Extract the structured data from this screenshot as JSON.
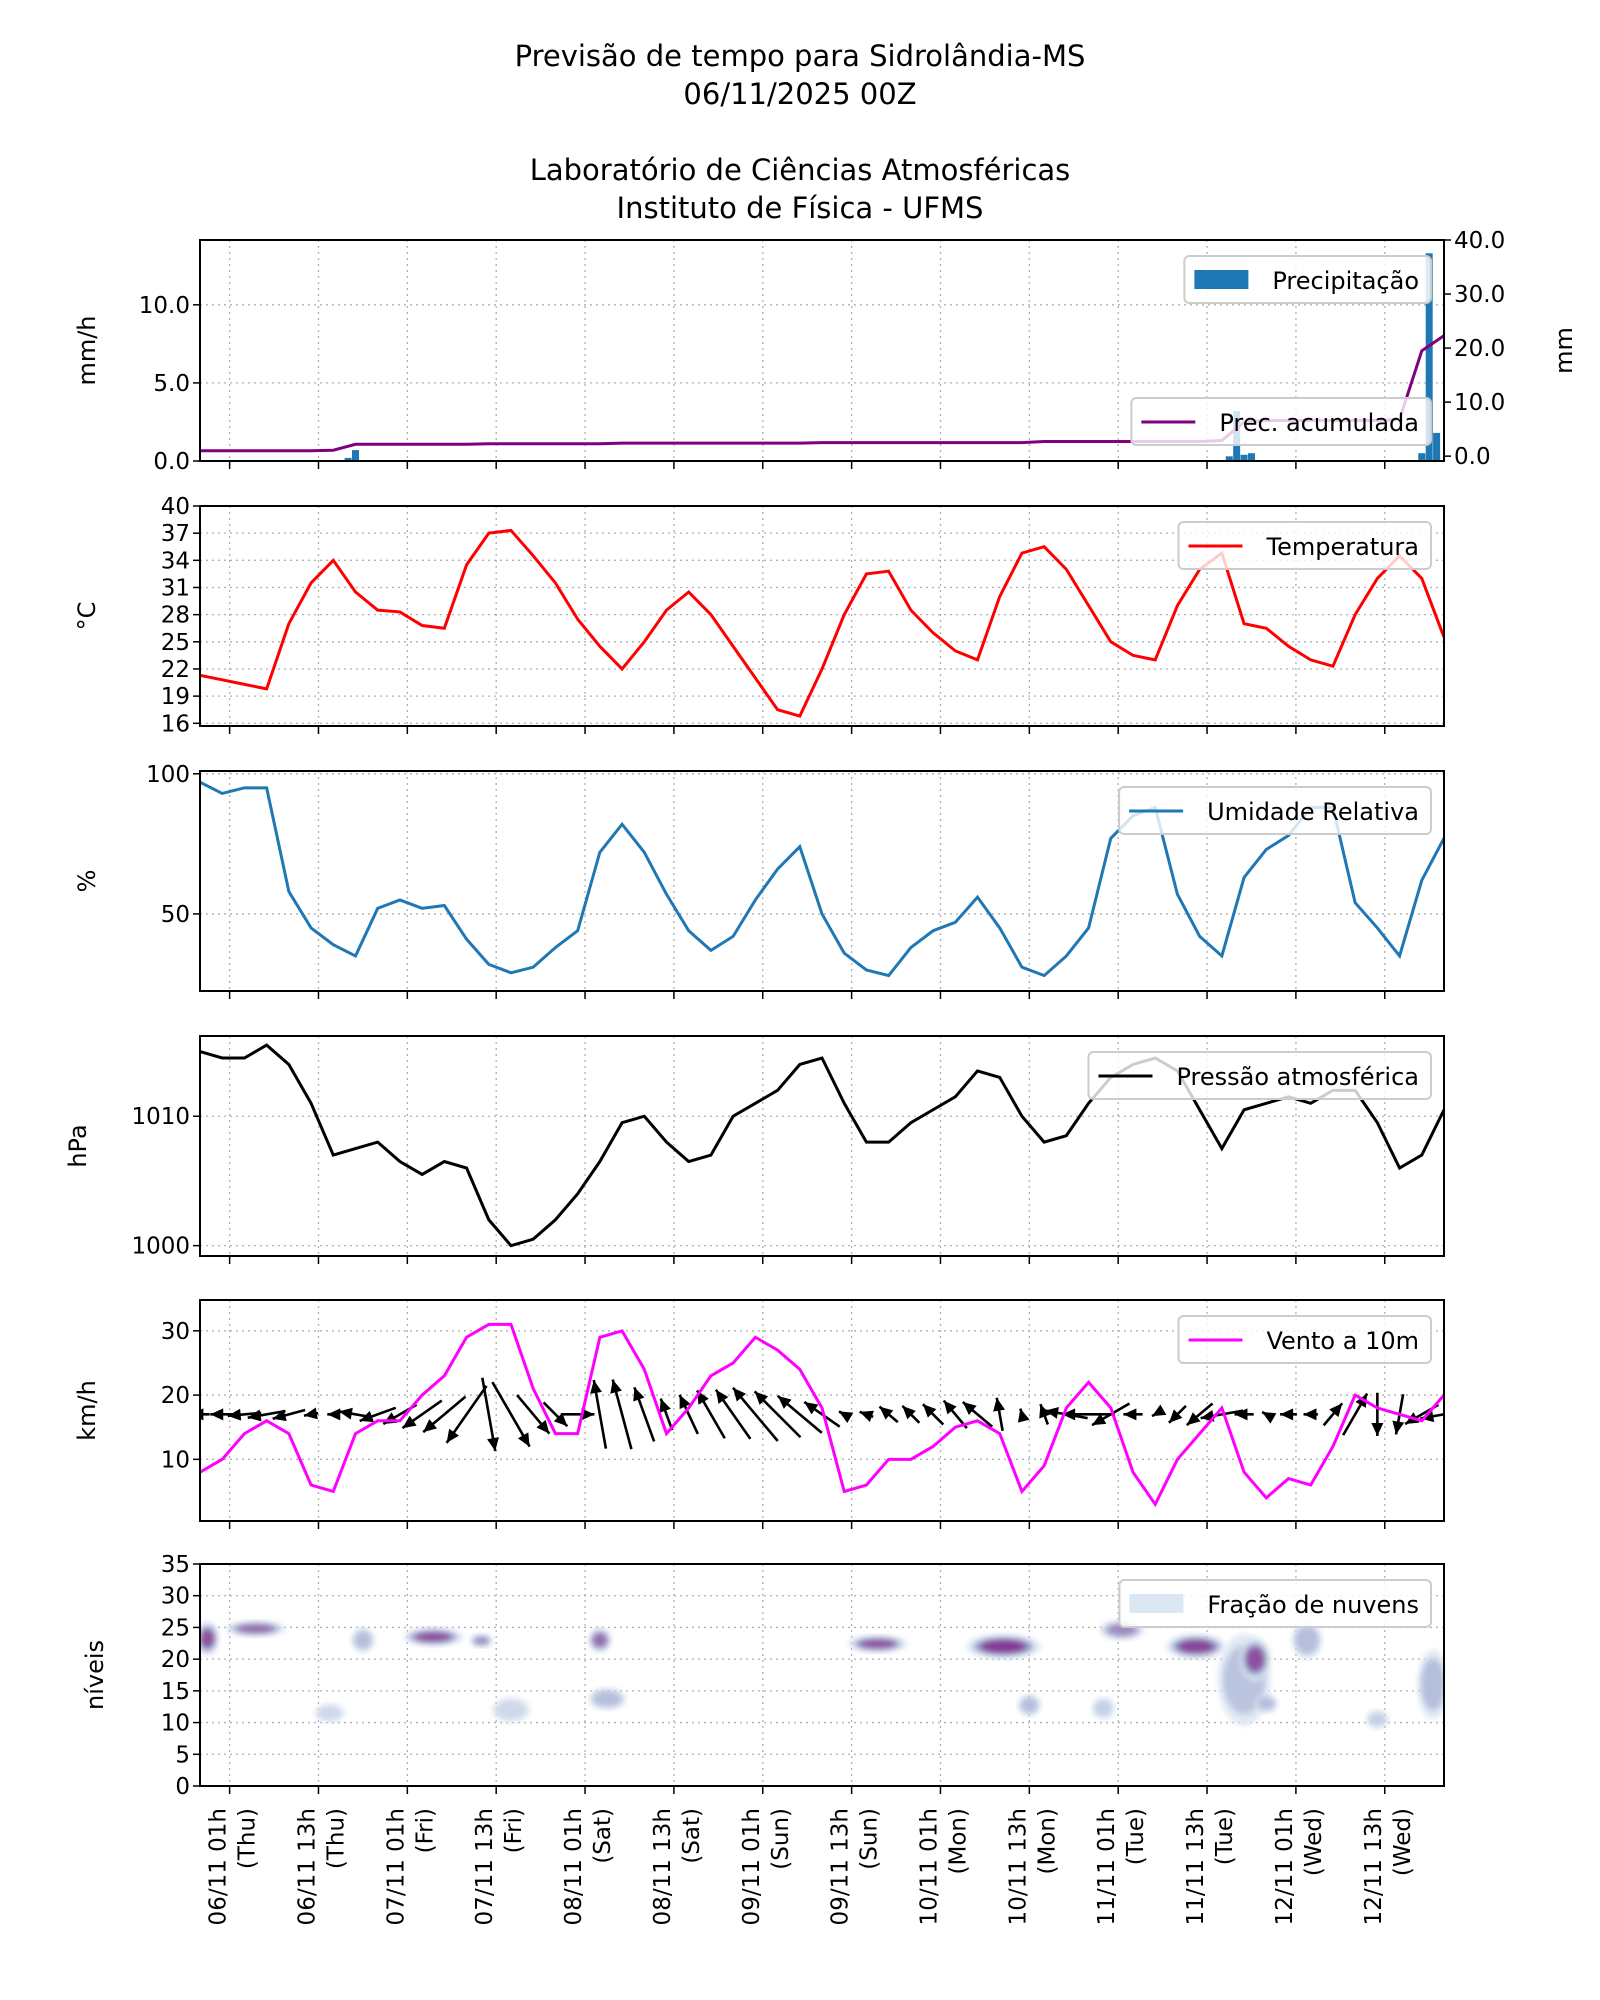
{
  "title": {
    "line1": "Previsão de tempo para Sidrolândia-MS",
    "line2": "06/11/2025 00Z",
    "line3": "Laboratório de Ciências Atmosféricas",
    "line4": "Instituto de Física - UFMS"
  },
  "x_ticks": [
    {
      "date": "06/11 01h",
      "day": "(Thu)"
    },
    {
      "date": "06/11 13h",
      "day": "(Thu)"
    },
    {
      "date": "07/11 01h",
      "day": "(Fri)"
    },
    {
      "date": "07/11 13h",
      "day": "(Fri)"
    },
    {
      "date": "08/11 01h",
      "day": "(Sat)"
    },
    {
      "date": "08/11 13h",
      "day": "(Sat)"
    },
    {
      "date": "09/11 01h",
      "day": "(Sun)"
    },
    {
      "date": "09/11 13h",
      "day": "(Sun)"
    },
    {
      "date": "10/11 01h",
      "day": "(Mon)"
    },
    {
      "date": "10/11 13h",
      "day": "(Mon)"
    },
    {
      "date": "11/11 01h",
      "day": "(Tue)"
    },
    {
      "date": "11/11 13h",
      "day": "(Tue)"
    },
    {
      "date": "12/11 01h",
      "day": "(Wed)"
    },
    {
      "date": "12/11 13h",
      "day": "(Wed)"
    }
  ],
  "times": [
    "05/11 21h",
    "06/11 00h",
    "06/11 03h",
    "06/11 06h",
    "06/11 09h",
    "06/11 12h",
    "06/11 15h",
    "06/11 18h",
    "06/11 21h",
    "07/11 00h",
    "07/11 03h",
    "07/11 06h",
    "07/11 09h",
    "07/11 12h",
    "07/11 15h",
    "07/11 18h",
    "07/11 21h",
    "08/11 00h",
    "08/11 03h",
    "08/11 06h",
    "08/11 09h",
    "08/11 12h",
    "08/11 15h",
    "08/11 18h",
    "08/11 21h",
    "09/11 00h",
    "09/11 03h",
    "09/11 06h",
    "09/11 09h",
    "09/11 12h",
    "09/11 15h",
    "09/11 18h",
    "09/11 21h",
    "10/11 00h",
    "10/11 03h",
    "10/11 06h",
    "10/11 09h",
    "10/11 12h",
    "10/11 15h",
    "10/11 18h",
    "10/11 21h",
    "11/11 00h",
    "11/11 03h",
    "11/11 06h",
    "11/11 09h",
    "11/11 12h",
    "11/11 15h",
    "11/11 18h",
    "11/11 21h",
    "12/11 00h",
    "12/11 03h",
    "12/11 06h",
    "12/11 09h",
    "12/11 12h",
    "12/11 15h",
    "12/11 18h",
    "12/11 21h"
  ],
  "chart_data": [
    {
      "id": "precip",
      "type": "bar",
      "ylabel": "mm/h",
      "ylim": [
        0,
        14.15
      ],
      "yticks": [
        "0.0",
        "5.0",
        "10.0"
      ],
      "ytick_values": [
        0,
        5,
        10
      ],
      "y2label": "mm",
      "y2lim": [
        -0.9,
        40
      ],
      "y2ticks": [
        "0.0",
        "10.0",
        "20.0",
        "30.0",
        "40.0"
      ],
      "y2tick_values": [
        0,
        10,
        20,
        30,
        40
      ],
      "bars": {
        "name": "Precipitação",
        "color": "#1f77b4",
        "points": [
          {
            "time": "06/11 17h",
            "value": 0.2
          },
          {
            "time": "06/11 18h",
            "value": 0.7
          },
          {
            "time": "11/11 16h",
            "value": 0.3
          },
          {
            "time": "11/11 17h",
            "value": 3.2
          },
          {
            "time": "11/11 18h",
            "value": 0.4
          },
          {
            "time": "11/11 19h",
            "value": 0.5
          },
          {
            "time": "12/11 18h",
            "value": 0.5
          },
          {
            "time": "12/11 19h",
            "value": 13.3
          },
          {
            "time": "12/11 20h",
            "value": 1.8
          }
        ]
      },
      "line": {
        "name": "Prec. acumulada",
        "color": "#800080",
        "axis": "right",
        "values": [
          1.0,
          1.0,
          1.0,
          1.0,
          1.0,
          1.0,
          1.1,
          2.2,
          2.2,
          2.2,
          2.2,
          2.2,
          2.2,
          2.3,
          2.3,
          2.3,
          2.3,
          2.3,
          2.3,
          2.4,
          2.4,
          2.4,
          2.4,
          2.4,
          2.4,
          2.4,
          2.4,
          2.4,
          2.5,
          2.5,
          2.5,
          2.5,
          2.5,
          2.5,
          2.5,
          2.5,
          2.5,
          2.5,
          2.7,
          2.7,
          2.7,
          2.7,
          2.7,
          2.7,
          2.7,
          2.7,
          2.9,
          6.3,
          6.6,
          6.6,
          6.6,
          6.6,
          6.6,
          6.6,
          6.8,
          19.5,
          22.3
        ]
      },
      "grid": true
    },
    {
      "id": "temp",
      "type": "line",
      "ylabel": "°C",
      "ylim": [
        15.7,
        40
      ],
      "yticks": [
        "16",
        "19",
        "22",
        "25",
        "28",
        "31",
        "34",
        "37",
        "40"
      ],
      "ytick_values": [
        16,
        19,
        22,
        25,
        28,
        31,
        34,
        37,
        40
      ],
      "series": [
        {
          "name": "Temperatura",
          "color": "#ff0000",
          "values": [
            21.3,
            20.8,
            20.3,
            19.8,
            27,
            31.5,
            34,
            30.5,
            28.5,
            28.3,
            26.8,
            26.5,
            33.5,
            37,
            37.3,
            34.5,
            31.5,
            27.5,
            24.5,
            22,
            25,
            28.5,
            30.5,
            28,
            24.5,
            21,
            17.5,
            16.8,
            22,
            28,
            32.5,
            32.8,
            28.5,
            26,
            24,
            23,
            30,
            34.8,
            35.5,
            33,
            29,
            25,
            23.5,
            23,
            29,
            33,
            34.8,
            27,
            26.5,
            24.5,
            23,
            22.3,
            28,
            32,
            34.5,
            32,
            25.5
          ]
        }
      ],
      "legend": "top-right",
      "grid": true
    },
    {
      "id": "rh",
      "type": "line",
      "ylabel": "%",
      "ylim": [
        22.5,
        101
      ],
      "yticks": [
        "50",
        "100"
      ],
      "ytick_values": [
        50,
        100
      ],
      "series": [
        {
          "name": "Umidade Relativa",
          "color": "#1f77b4",
          "values": [
            97,
            93,
            95,
            95,
            58,
            45,
            39,
            35,
            52,
            55,
            52,
            53,
            41,
            32,
            29,
            31,
            38,
            44,
            72,
            82,
            72,
            57,
            44,
            37,
            42,
            55,
            66,
            74,
            50,
            36,
            30,
            28,
            38,
            44,
            47,
            56,
            45,
            31,
            28,
            35,
            45,
            77,
            85,
            88,
            57,
            42,
            35,
            63,
            73,
            78,
            88,
            88,
            54,
            45,
            35,
            62,
            77
          ]
        }
      ],
      "legend": "top-right",
      "grid": true
    },
    {
      "id": "pres",
      "type": "line",
      "ylabel": "hPa",
      "ylim": [
        999.2,
        1016.2
      ],
      "yticks": [
        "1000",
        "1010"
      ],
      "ytick_values": [
        1000,
        1010
      ],
      "series": [
        {
          "name": "Pressão atmosférica",
          "color": "#000000",
          "values": [
            1015,
            1014.5,
            1014.5,
            1015.5,
            1014,
            1011,
            1007,
            1007.5,
            1008,
            1006.5,
            1005.5,
            1006.5,
            1006,
            1002,
            1000,
            1000.5,
            1002,
            1004,
            1006.5,
            1009.5,
            1010,
            1008,
            1006.5,
            1007,
            1010,
            1011,
            1012,
            1014,
            1014.5,
            1011,
            1008,
            1008,
            1009.5,
            1010.5,
            1011.5,
            1013.5,
            1013,
            1010,
            1008,
            1008.5,
            1011,
            1013,
            1014,
            1014.5,
            1013.5,
            1010.5,
            1007.5,
            1010.5,
            1011,
            1011.5,
            1011,
            1012,
            1012,
            1009.5,
            1006,
            1007,
            1010.5
          ]
        }
      ],
      "legend": "top-right",
      "grid": true
    },
    {
      "id": "wind",
      "type": "line",
      "ylabel": "km/h",
      "ylim": [
        0.4,
        34.8
      ],
      "yticks": [
        "10",
        "20",
        "30"
      ],
      "ytick_values": [
        10,
        20,
        30
      ],
      "series": [
        {
          "name": "Vento a 10m",
          "color": "#ff00ff",
          "values": [
            8,
            10,
            14,
            16,
            14,
            6,
            5,
            14,
            16,
            16,
            20,
            23,
            29,
            31,
            31,
            21,
            14,
            14,
            29,
            30,
            24,
            14,
            18,
            23,
            25,
            29,
            27,
            24,
            18,
            5,
            6,
            10,
            10,
            12,
            15,
            16,
            14,
            5,
            9,
            18,
            22,
            18,
            8,
            3,
            10,
            14,
            18,
            8,
            4,
            7,
            6,
            12,
            20,
            18,
            17,
            16,
            20
          ]
        }
      ],
      "wind_direction_from_deg": [
        90,
        90,
        85,
        80,
        75,
        80,
        90,
        100,
        70,
        60,
        55,
        50,
        35,
        350,
        330,
        320,
        315,
        270,
        170,
        165,
        160,
        160,
        155,
        150,
        145,
        140,
        135,
        130,
        125,
        120,
        110,
        130,
        135,
        135,
        140,
        130,
        170,
        165,
        160,
        100,
        90,
        60,
        90,
        60,
        45,
        50,
        80,
        90,
        120,
        90,
        90,
        220,
        210,
        0,
        10,
        60,
        80
      ],
      "vector_color": "#000000",
      "legend": "top-right",
      "grid": true
    },
    {
      "id": "cloud",
      "type": "heatmap",
      "ylabel": "níveis",
      "ylim": [
        0,
        35
      ],
      "yticks": [
        "0",
        "5",
        "10",
        "15",
        "20",
        "25",
        "30",
        "35"
      ],
      "ytick_values": [
        0,
        5,
        10,
        15,
        20,
        25,
        30,
        35
      ],
      "legend_label": "Fração de nuvens",
      "colors": [
        "#dbe7f2",
        "#8c96c6",
        "#810f7c"
      ],
      "patches": [
        {
          "start": "05/11 21h",
          "end": "05/11 23h",
          "level_min": 21,
          "level_max": 25.5,
          "fraction": 0.8
        },
        {
          "start": "06/11 01h",
          "end": "06/11 08h",
          "level_min": 24,
          "level_max": 25.6,
          "fraction": 0.7
        },
        {
          "start": "06/11 13h",
          "end": "06/11 16h",
          "level_min": 10.5,
          "level_max": 12.5,
          "fraction": 0.2
        },
        {
          "start": "06/11 18h",
          "end": "06/11 20h",
          "level_min": 21.5,
          "level_max": 24.5,
          "fraction": 0.5
        },
        {
          "start": "07/11 01h",
          "end": "07/11 08h",
          "level_min": 22.5,
          "level_max": 24.5,
          "fraction": 0.8
        },
        {
          "start": "07/11 10h",
          "end": "07/11 12h",
          "level_min": 22.3,
          "level_max": 23.5,
          "fraction": 0.6
        },
        {
          "start": "07/11 13h",
          "end": "07/11 17h",
          "level_min": 10.5,
          "level_max": 13.5,
          "fraction": 0.2
        },
        {
          "start": "08/11 02h",
          "end": "08/11 04h",
          "level_min": 21.5,
          "level_max": 24.5,
          "fraction": 0.7
        },
        {
          "start": "08/11 02h",
          "end": "08/11 06h",
          "level_min": 12.5,
          "level_max": 15,
          "fraction": 0.5
        },
        {
          "start": "09/11 13h",
          "end": "09/11 20h",
          "level_min": 21.5,
          "level_max": 23.3,
          "fraction": 0.8
        },
        {
          "start": "10/11 05h",
          "end": "10/11 14h",
          "level_min": 20.5,
          "level_max": 23.5,
          "fraction": 0.9
        },
        {
          "start": "10/11 12h",
          "end": "10/11 14h",
          "level_min": 11.5,
          "level_max": 14,
          "fraction": 0.5
        },
        {
          "start": "10/11 22h",
          "end": "11/11 00h",
          "level_min": 11,
          "level_max": 13.5,
          "fraction": 0.3
        },
        {
          "start": "10/11 23h",
          "end": "11/11 04h",
          "level_min": 23.5,
          "level_max": 25.7,
          "fraction": 0.6
        },
        {
          "start": "11/11 08h",
          "end": "11/11 15h",
          "level_min": 20.5,
          "level_max": 23.5,
          "fraction": 0.85
        },
        {
          "start": "11/11 15h",
          "end": "11/11 21h",
          "level_min": 10,
          "level_max": 23.5,
          "fraction": 0.45
        },
        {
          "start": "11/11 18h",
          "end": "11/11 21h",
          "level_min": 17,
          "level_max": 23,
          "fraction": 0.8
        },
        {
          "start": "11/11 20h",
          "end": "11/11 22h",
          "level_min": 12,
          "level_max": 14,
          "fraction": 0.5
        },
        {
          "start": "12/11 01h",
          "end": "12/11 04h",
          "level_min": 20.5,
          "level_max": 25.5,
          "fraction": 0.5
        },
        {
          "start": "12/11 11h",
          "end": "12/11 13h",
          "level_min": 9.5,
          "level_max": 11.5,
          "fraction": 0.3
        },
        {
          "start": "12/11 18h",
          "end": "12/11 21h",
          "level_min": 11,
          "level_max": 21,
          "fraction": 0.5
        }
      ],
      "legend": "top-right",
      "grid": true
    }
  ]
}
